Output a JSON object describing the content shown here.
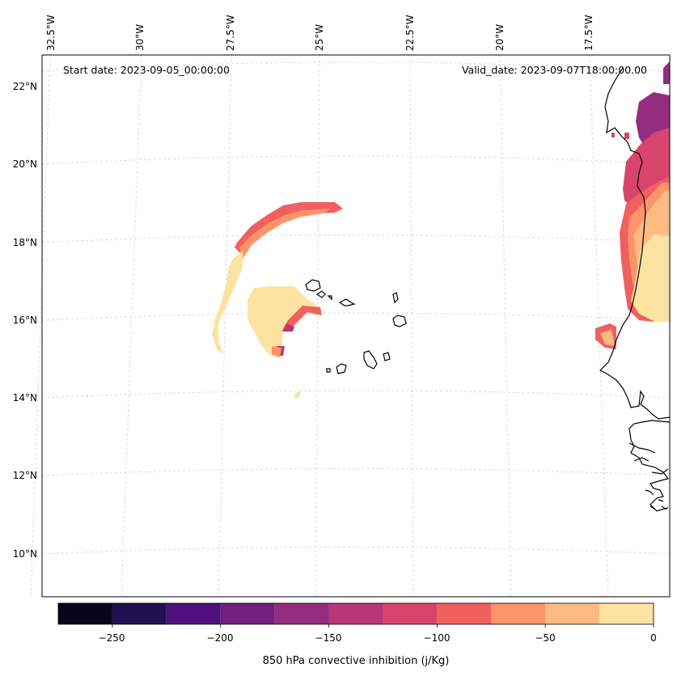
{
  "map": {
    "start_date_text": "Start date: 2023-09-05_00:00:00",
    "valid_date_text": "Valid_date: 2023-09-07T18:00:00.00",
    "longitude_labels": [
      "32.5°W",
      "30°W",
      "27.5°W",
      "25°W",
      "22.5°W",
      "20°W",
      "17.5°W"
    ],
    "latitude_labels": [
      "22°N",
      "20°N",
      "18°N",
      "16°N",
      "14°N",
      "12°N",
      "10°N"
    ],
    "grid_lines": true,
    "projection": "conic"
  },
  "colorbar": {
    "label": "850 hPa convective inhibition (j/Kg)",
    "tick_labels": [
      "−250",
      "−200",
      "−150",
      "−100",
      "−50",
      "0"
    ],
    "bounds": [
      -275,
      -250,
      -225,
      -200,
      -175,
      -150,
      -125,
      -100,
      -75,
      -50,
      -25,
      0
    ],
    "colors": [
      "#06051a",
      "#221150",
      "#4e107b",
      "#721f81",
      "#942c80",
      "#b73779",
      "#d8456c",
      "#f1605d",
      "#fd9468",
      "#febb81",
      "#fde3a2"
    ],
    "colormap": "magma"
  }
}
